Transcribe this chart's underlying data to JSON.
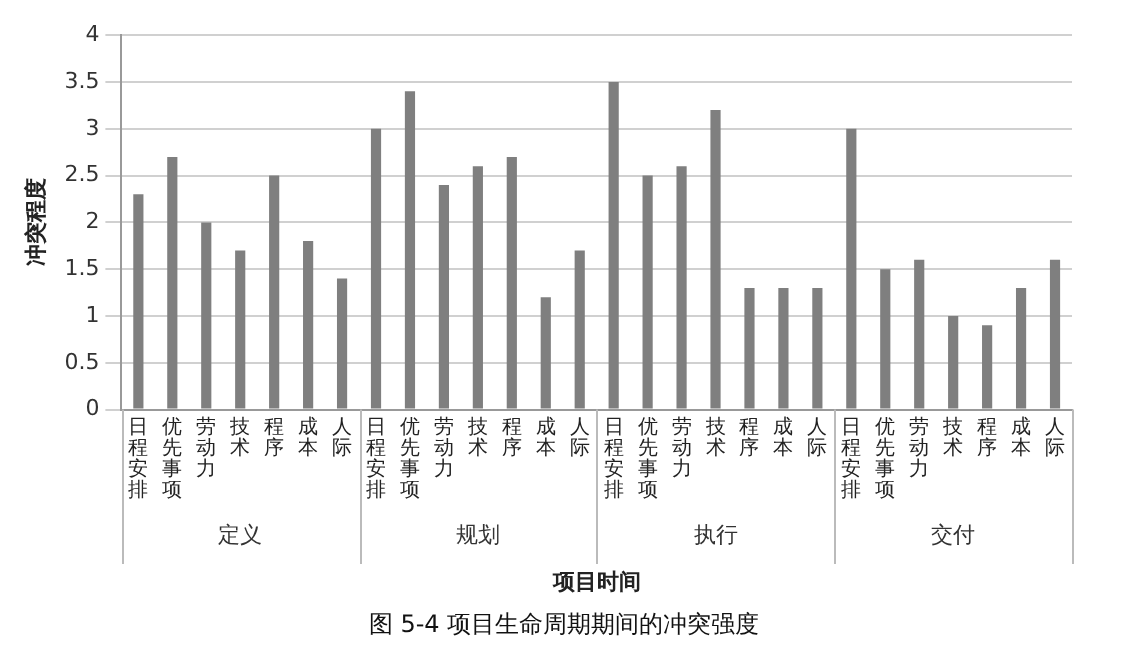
{
  "chart_data": {
    "type": "bar",
    "title": "图 5-4 项目生命周期期间的冲突强度",
    "xlabel": "项目时间",
    "ylabel": "冲突程度",
    "categories": [
      "日程安排",
      "优先事项",
      "劳动力",
      "技术",
      "程序",
      "成本",
      "人际",
      "日程安排",
      "优先事项",
      "劳动力",
      "技术",
      "程序",
      "成本",
      "人际",
      "日程安排",
      "优先事项",
      "劳动力",
      "技术",
      "程序",
      "成本",
      "人际",
      "日程安排",
      "优先事项",
      "劳动力",
      "技术",
      "程序",
      "成本",
      "人际"
    ],
    "values": [
      2.3,
      2.7,
      2.0,
      1.7,
      2.5,
      1.8,
      1.4,
      3.0,
      3.4,
      2.4,
      2.6,
      2.7,
      1.2,
      1.7,
      3.5,
      2.5,
      2.6,
      3.2,
      1.3,
      1.3,
      1.3,
      3.0,
      1.5,
      1.6,
      1.0,
      0.9,
      1.3,
      1.6
    ],
    "color": "#7f7f7f",
    "annotations": [
      "定义",
      "规划",
      "执行",
      "交付"
    ],
    "ylim": [
      0,
      4
    ],
    "yticks": [
      0,
      0.5,
      1,
      1.5,
      2,
      2.5,
      3,
      3.5,
      4
    ],
    "grid": "y",
    "legend": false
  }
}
